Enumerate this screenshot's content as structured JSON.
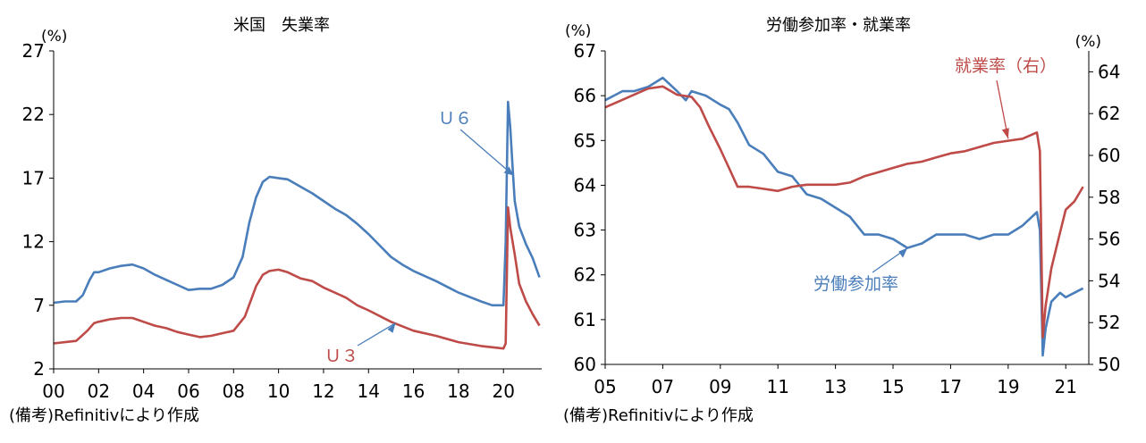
{
  "chart_data": [
    {
      "type": "line",
      "title": "米国　失業率",
      "y_unit": "(%)",
      "ylim": [
        2,
        27
      ],
      "yticks": [
        "27",
        "22",
        "17",
        "12",
        "7",
        "2"
      ],
      "xlim": [
        0,
        21.7
      ],
      "xticks": [
        "00",
        "02",
        "04",
        "06",
        "08",
        "10",
        "12",
        "14",
        "16",
        "18",
        "20"
      ],
      "note": "(備考)Refinitivにより作成",
      "series": [
        {
          "name": "U6",
          "label": "Ｕ６",
          "color": "#4a7ebb",
          "x": [
            0,
            0.5,
            1.0,
            1.3,
            1.6,
            1.8,
            2.0,
            2.5,
            3.0,
            3.5,
            4.0,
            4.5,
            5.0,
            5.5,
            6.0,
            6.5,
            7.0,
            7.5,
            8.0,
            8.4,
            8.7,
            9.0,
            9.3,
            9.6,
            10.0,
            10.4,
            11.0,
            11.5,
            12.0,
            12.5,
            13.0,
            13.5,
            14.0,
            14.5,
            15.0,
            15.5,
            16.0,
            17.0,
            18.0,
            19.0,
            19.5,
            20.0,
            20.1,
            20.2,
            20.3,
            20.4,
            20.5,
            20.7,
            21.0,
            21.3,
            21.6
          ],
          "y": [
            7.2,
            7.3,
            7.3,
            7.8,
            9.0,
            9.6,
            9.6,
            9.9,
            10.1,
            10.2,
            9.9,
            9.4,
            9.0,
            8.6,
            8.2,
            8.3,
            8.3,
            8.6,
            9.2,
            10.8,
            13.5,
            15.5,
            16.7,
            17.1,
            17.0,
            16.9,
            16.3,
            15.8,
            15.2,
            14.6,
            14.1,
            13.4,
            12.6,
            11.7,
            10.8,
            10.2,
            9.7,
            8.9,
            8.0,
            7.3,
            7.0,
            7.0,
            12.0,
            23.0,
            21.0,
            18.0,
            15.2,
            13.2,
            11.8,
            10.7,
            9.2
          ]
        },
        {
          "name": "U3",
          "label": "Ｕ３",
          "color": "#be4b48",
          "x": [
            0,
            0.5,
            1.0,
            1.5,
            1.8,
            2.0,
            2.5,
            3.0,
            3.5,
            4.0,
            4.5,
            5.0,
            5.5,
            6.0,
            6.5,
            7.0,
            7.5,
            8.0,
            8.5,
            9.0,
            9.3,
            9.6,
            10.0,
            10.4,
            11.0,
            11.5,
            12.0,
            12.5,
            13.0,
            13.5,
            14.0,
            15.0,
            16.0,
            17.0,
            18.0,
            19.0,
            20.0,
            20.1,
            20.2,
            20.3,
            20.5,
            20.7,
            21.0,
            21.3,
            21.6
          ],
          "y": [
            4.0,
            4.1,
            4.2,
            5.0,
            5.6,
            5.7,
            5.9,
            6.0,
            6.0,
            5.7,
            5.4,
            5.2,
            4.9,
            4.7,
            4.5,
            4.6,
            4.8,
            5.0,
            6.1,
            8.5,
            9.4,
            9.7,
            9.8,
            9.6,
            9.1,
            8.9,
            8.4,
            8.0,
            7.6,
            7.0,
            6.6,
            5.7,
            5.0,
            4.6,
            4.1,
            3.8,
            3.6,
            4.0,
            14.7,
            13.1,
            11.0,
            8.7,
            7.3,
            6.3,
            5.4
          ]
        }
      ]
    },
    {
      "type": "line",
      "title": "労働参加率・就業率",
      "y_unit_left": "(%)",
      "y_unit_right": "(%)",
      "ylim_left": [
        60,
        67
      ],
      "ylim_right": [
        50,
        65
      ],
      "yticks_left": [
        "67",
        "66",
        "65",
        "64",
        "63",
        "62",
        "61",
        "60"
      ],
      "yticks_right": [
        "64",
        "62",
        "60",
        "58",
        "56",
        "54",
        "52",
        "50"
      ],
      "xlim": [
        5,
        21.8
      ],
      "xticks": [
        "05",
        "07",
        "09",
        "11",
        "13",
        "15",
        "17",
        "19",
        "21"
      ],
      "note": "(備考)Refinitivにより作成",
      "series": [
        {
          "name": "労働参加率",
          "label": "労働参加率",
          "axis": "left",
          "color": "#4a7ebb",
          "x": [
            5.0,
            5.3,
            5.6,
            6.0,
            6.5,
            7.0,
            7.5,
            7.8,
            8.0,
            8.5,
            9.0,
            9.3,
            9.6,
            10.0,
            10.5,
            11.0,
            11.5,
            12.0,
            12.5,
            13.0,
            13.5,
            14.0,
            14.5,
            15.0,
            15.5,
            16.0,
            16.5,
            17.0,
            17.5,
            18.0,
            18.5,
            19.0,
            19.5,
            20.0,
            20.1,
            20.2,
            20.3,
            20.5,
            20.8,
            21.0,
            21.3,
            21.6
          ],
          "y": [
            65.9,
            66.0,
            66.1,
            66.1,
            66.2,
            66.4,
            66.1,
            65.9,
            66.1,
            66.0,
            65.8,
            65.7,
            65.4,
            64.9,
            64.7,
            64.3,
            64.2,
            63.8,
            63.7,
            63.5,
            63.3,
            62.9,
            62.9,
            62.8,
            62.6,
            62.7,
            62.9,
            62.9,
            62.9,
            62.8,
            62.9,
            62.9,
            63.1,
            63.4,
            63.0,
            60.2,
            60.8,
            61.4,
            61.6,
            61.5,
            61.6,
            61.7
          ]
        },
        {
          "name": "就業率",
          "label": "就業率（右）",
          "axis": "right",
          "color": "#be4b48",
          "x": [
            5.0,
            5.5,
            6.0,
            6.5,
            7.0,
            7.5,
            8.0,
            8.3,
            8.6,
            9.0,
            9.3,
            9.6,
            10.0,
            10.5,
            11.0,
            11.5,
            12.0,
            12.5,
            13.0,
            13.5,
            14.0,
            14.5,
            15.0,
            15.5,
            16.0,
            16.5,
            17.0,
            17.5,
            18.0,
            18.5,
            19.0,
            19.5,
            20.0,
            20.1,
            20.2,
            20.3,
            20.5,
            20.8,
            21.0,
            21.3,
            21.6
          ],
          "y": [
            62.3,
            62.6,
            62.9,
            63.2,
            63.3,
            62.9,
            62.8,
            62.3,
            61.4,
            60.3,
            59.4,
            58.5,
            58.5,
            58.4,
            58.3,
            58.5,
            58.6,
            58.6,
            58.6,
            58.7,
            59.0,
            59.2,
            59.4,
            59.6,
            59.7,
            59.9,
            60.1,
            60.2,
            60.4,
            60.6,
            60.7,
            60.8,
            61.1,
            60.2,
            51.3,
            52.8,
            54.6,
            56.3,
            57.4,
            57.8,
            58.5
          ]
        }
      ]
    }
  ]
}
